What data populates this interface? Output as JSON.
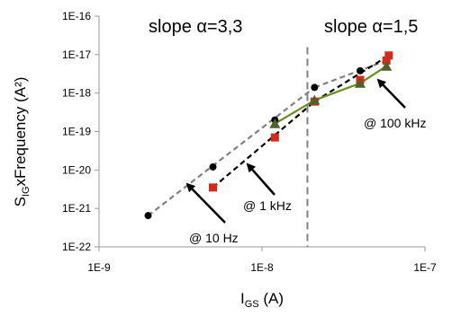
{
  "chart_data": {
    "type": "scatter",
    "xscale": "log",
    "yscale": "log",
    "xlim": [
      1e-09,
      1e-07
    ],
    "ylim": [
      1e-22,
      1e-16
    ],
    "grid": false,
    "xlabel": {
      "main": "I",
      "sub": "GS",
      "rest": " (A)"
    },
    "ylabel": {
      "main": "S",
      "sub": "IG",
      "rest": "xFrequency (A²)"
    },
    "x_ticks": [
      {
        "value": 1e-09,
        "label": "1E-9"
      },
      {
        "value": 1e-08,
        "label": "1E-8"
      },
      {
        "value": 1e-07,
        "label": "1E-7"
      }
    ],
    "y_ticks": [
      {
        "value": 1e-22,
        "label": "1E-22"
      },
      {
        "value": 1e-21,
        "label": "1E-21"
      },
      {
        "value": 1e-20,
        "label": "1E-20"
      },
      {
        "value": 1e-19,
        "label": "1E-19"
      },
      {
        "value": 1e-18,
        "label": "1E-18"
      },
      {
        "value": 1e-17,
        "label": "1E-17"
      },
      {
        "value": 1e-16,
        "label": "1E-16"
      }
    ],
    "series": [
      {
        "key": "10hz",
        "marker": "circle",
        "color": "#000000",
        "x": [
          2e-09,
          5e-09,
          1.2e-08,
          2.1e-08,
          4e-08,
          5.8e-08
        ],
        "y": [
          6.5e-22,
          1.2e-20,
          2e-19,
          1.4e-18,
          3.8e-18,
          7e-18
        ]
      },
      {
        "key": "1khz",
        "marker": "square",
        "color": "#d42a1c",
        "x": [
          5e-09,
          1.2e-08,
          2.1e-08,
          4e-08,
          5.8e-08,
          6e-08
        ],
        "y": [
          3.5e-21,
          7e-20,
          6e-19,
          2.2e-18,
          7e-18,
          9.5e-18
        ]
      },
      {
        "key": "100khz",
        "marker": "triangle",
        "color": "#4f6228",
        "x": [
          1.2e-08,
          2.1e-08,
          4e-08,
          5.8e-08
        ],
        "y": [
          1.6e-19,
          6.5e-19,
          1.8e-18,
          5e-18
        ]
      }
    ],
    "trend_lines": [
      {
        "key": "10hz",
        "color": "#808080",
        "dash": "6,4",
        "from": [
          2e-09,
          6.5e-22
        ],
        "to": [
          2.1e-08,
          1.4e-18
        ]
      },
      {
        "key": "10hz-b",
        "color": "#808080",
        "dash": "6,4",
        "from": [
          2.1e-08,
          1.4e-18
        ],
        "to": [
          5.8e-08,
          7e-18
        ]
      },
      {
        "key": "1khz",
        "color": "#000000",
        "dash": "6,4",
        "from": [
          5e-09,
          3.5e-21
        ],
        "to": [
          2.1e-08,
          6e-19
        ]
      },
      {
        "key": "1khz-b",
        "color": "#000000",
        "dash": "6,4",
        "from": [
          2.1e-08,
          6e-19
        ],
        "to": [
          6e-08,
          9.5e-18
        ]
      },
      {
        "key": "100khz",
        "color": "#6b8e23",
        "dash": "",
        "from": [
          1.2e-08,
          1.6e-19
        ],
        "to": [
          2.1e-08,
          6.5e-19
        ]
      },
      {
        "key": "100khz-b",
        "color": "#6b8e23",
        "dash": "",
        "from": [
          2.1e-08,
          6.5e-19
        ],
        "to": [
          4e-08,
          1.8e-18
        ]
      },
      {
        "key": "100khz-c",
        "color": "#6b8e23",
        "dash": "",
        "from": [
          4e-08,
          1.8e-18
        ],
        "to": [
          5.8e-08,
          5e-18
        ]
      }
    ],
    "divider_x": 1.9e-08,
    "annotations": [
      {
        "key": "slope-left",
        "text": "slope α=3,3"
      },
      {
        "key": "slope-right",
        "text": "slope α=1,5"
      },
      {
        "key": "label-10hz",
        "text": "@ 10 Hz"
      },
      {
        "key": "label-1khz",
        "text": "@ 1 kHz"
      },
      {
        "key": "label-100khz",
        "text": "@ 100 kHz"
      }
    ]
  }
}
